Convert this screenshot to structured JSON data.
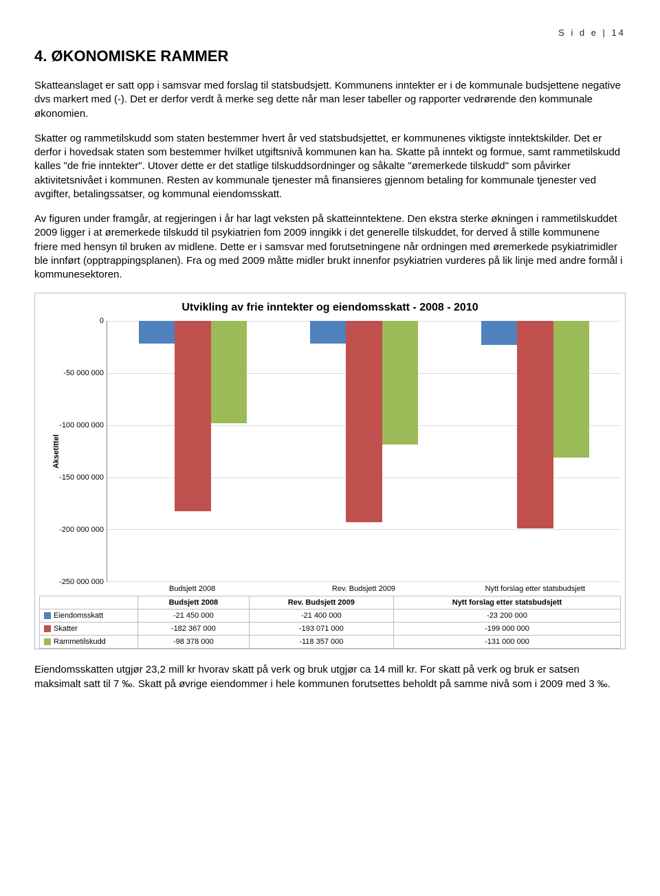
{
  "page_header": "S i d e | 14",
  "heading": "4.    ØKONOMISKE RAMMER",
  "paragraphs": [
    "Skatteanslaget er satt opp i samsvar med forslag til statsbudsjett. Kommunens inntekter er i de kommunale budsjettene negative dvs markert med (-). Det er derfor verdt å merke seg dette når man leser tabeller og rapporter vedrørende den kommunale økonomien.",
    "Skatter og rammetilskudd som staten bestemmer hvert år ved statsbudsjettet, er kommunenes viktigste inntektskilder. Det er derfor i hovedsak staten som bestemmer hvilket utgiftsnivå kommunen kan ha. Skatte på inntekt og formue, samt rammetilskudd kalles \"de frie inntekter\". Utover dette er det statlige tilskuddsordninger og såkalte \"øremerkede tilskudd\" som påvirker aktivitetsnivået i kommunen. Resten av kommunale tjenester må finansieres gjennom betaling for kommunale tjenester ved avgifter, betalingssatser, og kommunal eiendomsskatt.",
    "Av figuren under framgår, at regjeringen i år har lagt veksten på skatteinntektene. Den ekstra sterke økningen i rammetilskuddet 2009 ligger i at øremerkede tilskudd til psykiatrien fom 2009 inngikk i det generelle tilskuddet, for derved å stille kommunene friere med hensyn til bruken av midlene. Dette er i samsvar med forutsetningene når ordningen med øremerkede psykiatrimidler ble innført (opptrappingsplanen). Fra og med 2009 måtte midler brukt innenfor psykiatrien vurderes på lik linje med andre formål i kommunesektoren."
  ],
  "chart": {
    "type": "bar",
    "title": "Utvikling av frie inntekter og eiendomsskatt - 2008 - 2010",
    "ylabel": "Aksetittel",
    "ymin": -250000000,
    "ymax": 0,
    "ytick_step": 50000000,
    "yticks": [
      "0",
      "-50 000 000",
      "-100 000 000",
      "-150 000 000",
      "-200 000 000",
      "-250 000 000"
    ],
    "grid_color": "#dcdcdc",
    "background_color": "#ffffff",
    "categories": [
      "Budsjett 2008",
      "Rev. Budsjett 2009",
      "Nytt forslag etter statsbudsjett"
    ],
    "series": [
      {
        "name": "Eiendomsskatt",
        "color": "#4f81bd",
        "values": [
          -21450000,
          -21400000,
          -23200000
        ],
        "labels": [
          "-21 450 000",
          "-21 400 000",
          "-23 200 000"
        ]
      },
      {
        "name": "Skatter",
        "color": "#c0504d",
        "values": [
          -182367000,
          -193071000,
          -199000000
        ],
        "labels": [
          "-182 367 000",
          "-193 071 000",
          "-199 000 000"
        ]
      },
      {
        "name": "Rammetilskudd",
        "color": "#9bbb59",
        "values": [
          -98378000,
          -118357000,
          -131000000
        ],
        "labels": [
          "-98 378 000",
          "-118 357 000",
          "-131 000 000"
        ]
      }
    ],
    "bar_width_pct": 7,
    "group_gap_pct": 2
  },
  "footer_paragraph": "Eiendomsskatten utgjør 23,2 mill kr hvorav skatt på verk og bruk utgjør ca 14 mill kr. For skatt på verk og bruk er satsen maksimalt satt til 7 ‰. Skatt på øvrige eiendommer i hele kommunen forutsettes beholdt på samme nivå som i 2009 med 3 ‰."
}
